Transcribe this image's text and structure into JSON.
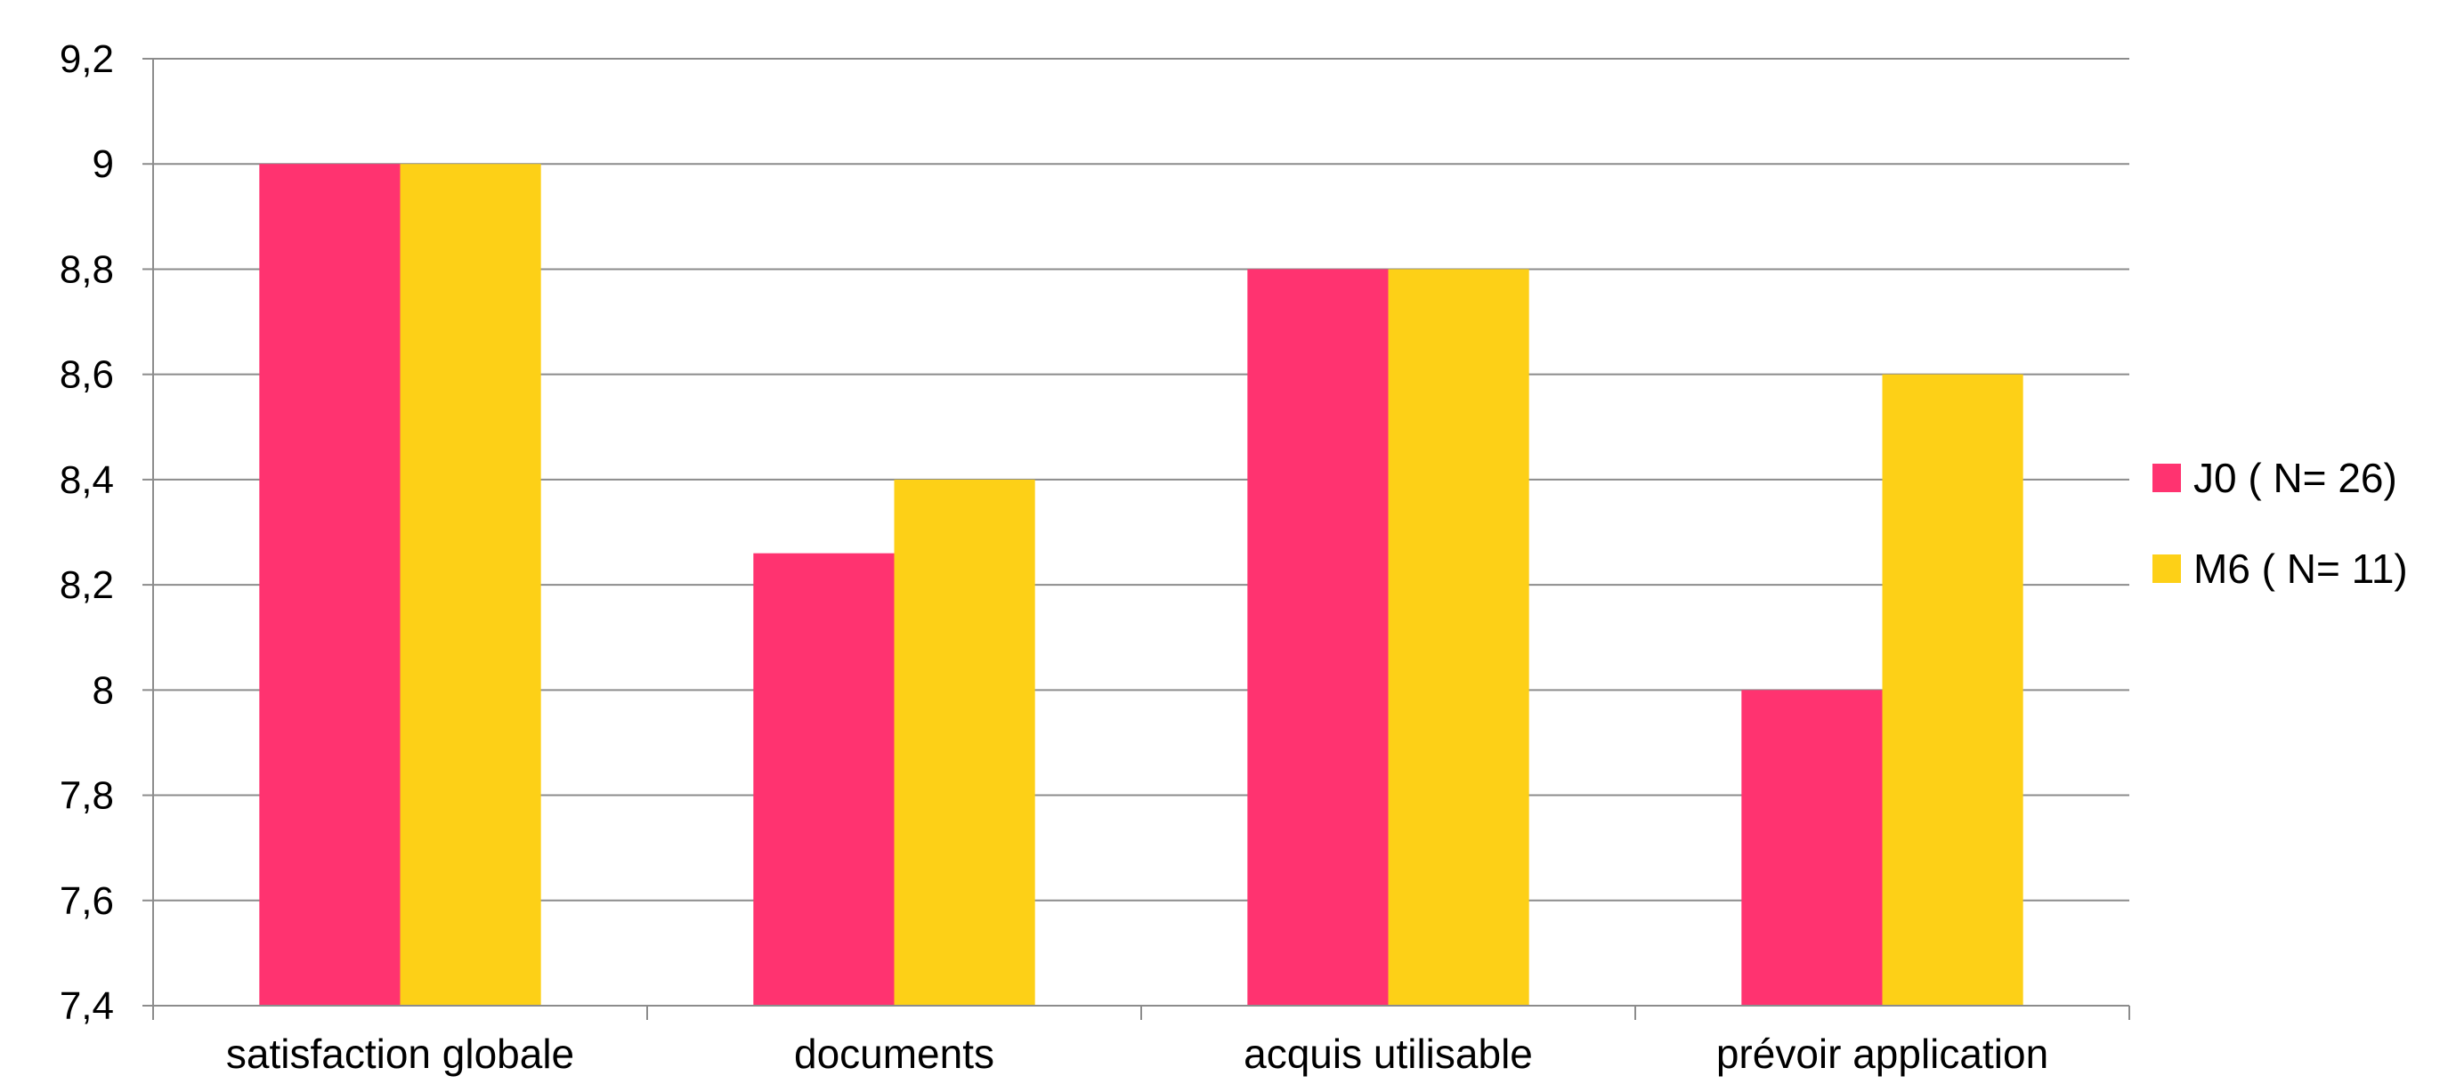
{
  "chart_data": {
    "type": "bar",
    "title": "",
    "xlabel": "",
    "ylabel": "",
    "categories": [
      "satisfaction globale",
      "documents",
      "acquis utilisable",
      "prévoir application"
    ],
    "series": [
      {
        "name": "J0 ( N= 26)",
        "color": "#ff3370",
        "values": [
          9.0,
          8.26,
          8.8,
          8.0
        ]
      },
      {
        "name": "M6 ( N= 11)",
        "color": "#fdd017",
        "values": [
          9.0,
          8.4,
          8.8,
          8.6
        ]
      }
    ],
    "ylim": [
      7.4,
      9.2
    ],
    "yticks": [
      "7,4",
      "7,6",
      "7,8",
      "8",
      "8,2",
      "8,4",
      "8,6",
      "8,8",
      "9",
      "9,2"
    ],
    "grid": true,
    "legend_position": "right"
  }
}
